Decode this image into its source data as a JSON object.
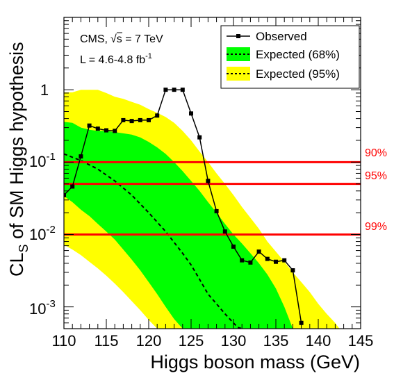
{
  "chart_data": {
    "type": "line",
    "title": "",
    "xlabel": "Higgs boson mass (GeV)",
    "ylabel_main": "CL",
    "ylabel_sub": "S",
    "ylabel_rest": " of SM Higgs hypothesis",
    "xlim": [
      110,
      145
    ],
    "ylim": [
      0.0005,
      10
    ],
    "yscale": "log",
    "x_ticks": [
      "110",
      "115",
      "120",
      "125",
      "130",
      "135",
      "140",
      "145"
    ],
    "y_ticks": [
      {
        "value": 0.001,
        "base": "10",
        "exp": "-3"
      },
      {
        "value": 0.01,
        "base": "10",
        "exp": "-2"
      },
      {
        "value": 0.1,
        "base": "10",
        "exp": "-1"
      },
      {
        "value": 1,
        "base": "1",
        "exp": ""
      }
    ],
    "annotation": {
      "line1_prefix": "CMS,",
      "line1_s": "s",
      "line1_suffix": " = 7 TeV",
      "line2": "L = 4.6-4.8 fb",
      "line2_exp": "-1"
    },
    "legend": {
      "placement": "top-right",
      "entries": [
        {
          "label": "Observed",
          "style": "line-marker"
        },
        {
          "label": "Expected (68%)",
          "style": "band-green"
        },
        {
          "label": "Expected (95%)",
          "style": "band-yellow"
        }
      ]
    },
    "colors": {
      "observed": "#000000",
      "band68": "#00ff00",
      "band95": "#ffff00",
      "cl_lines": "#ff0000"
    },
    "cl_lines": [
      {
        "value": 0.1,
        "label": "90%"
      },
      {
        "value": 0.05,
        "label": "95%"
      },
      {
        "value": 0.01,
        "label": "99%"
      }
    ],
    "observed": {
      "name": "Observed",
      "x": [
        110,
        111,
        112,
        113,
        114,
        115,
        116,
        117,
        118,
        119,
        120,
        121,
        122,
        123,
        124,
        125,
        126,
        127,
        128,
        129,
        130,
        131,
        132,
        133,
        134,
        135,
        136,
        137,
        138
      ],
      "y": [
        0.035,
        0.046,
        0.12,
        0.32,
        0.29,
        0.275,
        0.27,
        0.38,
        0.37,
        0.38,
        0.38,
        0.44,
        1.0,
        1.0,
        1.0,
        0.47,
        0.22,
        0.055,
        0.021,
        0.011,
        0.0068,
        0.0044,
        0.0041,
        0.0058,
        0.0046,
        0.0042,
        0.0044,
        0.0032,
        0.0006
      ]
    },
    "expected": {
      "name": "Expected",
      "x": [
        110,
        112,
        114,
        116,
        118,
        120,
        122,
        124,
        125,
        126,
        127,
        128,
        129,
        130,
        130.5,
        131
      ],
      "y": [
        0.13,
        0.105,
        0.08,
        0.055,
        0.035,
        0.02,
        0.011,
        0.0055,
        0.0038,
        0.0024,
        0.0015,
        0.0011,
        0.0008,
        0.0006,
        0.00052,
        0.0005
      ]
    },
    "band68": {
      "upper_x": [
        110,
        111,
        112,
        113,
        114,
        115,
        116,
        117,
        118,
        119,
        120,
        121,
        122,
        123,
        124,
        125,
        126,
        127,
        128,
        129,
        130,
        131,
        132,
        133,
        134,
        135,
        136,
        137
      ],
      "upper_y": [
        0.36,
        0.35,
        0.3,
        0.28,
        0.27,
        0.27,
        0.26,
        0.25,
        0.24,
        0.22,
        0.19,
        0.16,
        0.13,
        0.1,
        0.075,
        0.055,
        0.04,
        0.028,
        0.02,
        0.014,
        0.01,
        0.0075,
        0.0055,
        0.004,
        0.0028,
        0.0018,
        0.001,
        0.0005
      ],
      "lower_x": [
        110,
        111,
        112,
        113,
        114,
        115,
        116,
        117,
        118,
        119,
        120,
        121,
        122,
        123,
        124,
        125,
        126,
        127
      ],
      "lower_y": [
        0.034,
        0.028,
        0.022,
        0.018,
        0.014,
        0.011,
        0.0085,
        0.0062,
        0.0045,
        0.0032,
        0.0022,
        0.0015,
        0.001,
        0.00068,
        0.0005,
        0.0005,
        0.0005,
        0.0005
      ]
    },
    "band95": {
      "upper_x": [
        110,
        111,
        112,
        113,
        114,
        115,
        116,
        117,
        118,
        119,
        120,
        121,
        122,
        123,
        124,
        125,
        126,
        127,
        128,
        129,
        130,
        131,
        132,
        133,
        134,
        135,
        136,
        137,
        138,
        139,
        140,
        141,
        142,
        142.5
      ],
      "upper_y": [
        0.92,
        0.92,
        1.0,
        1.0,
        1.0,
        0.9,
        0.8,
        0.75,
        0.68,
        0.62,
        0.54,
        0.48,
        0.42,
        0.35,
        0.27,
        0.2,
        0.14,
        0.1,
        0.07,
        0.05,
        0.035,
        0.024,
        0.017,
        0.012,
        0.008,
        0.0058,
        0.0042,
        0.003,
        0.0022,
        0.0016,
        0.0011,
        0.0008,
        0.0006,
        0.0005
      ],
      "lower_x": [
        110,
        111,
        112,
        113,
        114,
        115,
        116,
        117,
        118,
        119,
        120,
        121,
        122
      ],
      "lower_y": [
        0.0072,
        0.0062,
        0.0052,
        0.0042,
        0.0034,
        0.0027,
        0.0021,
        0.0016,
        0.0012,
        0.0009,
        0.00066,
        0.0005,
        0.0005
      ]
    }
  }
}
